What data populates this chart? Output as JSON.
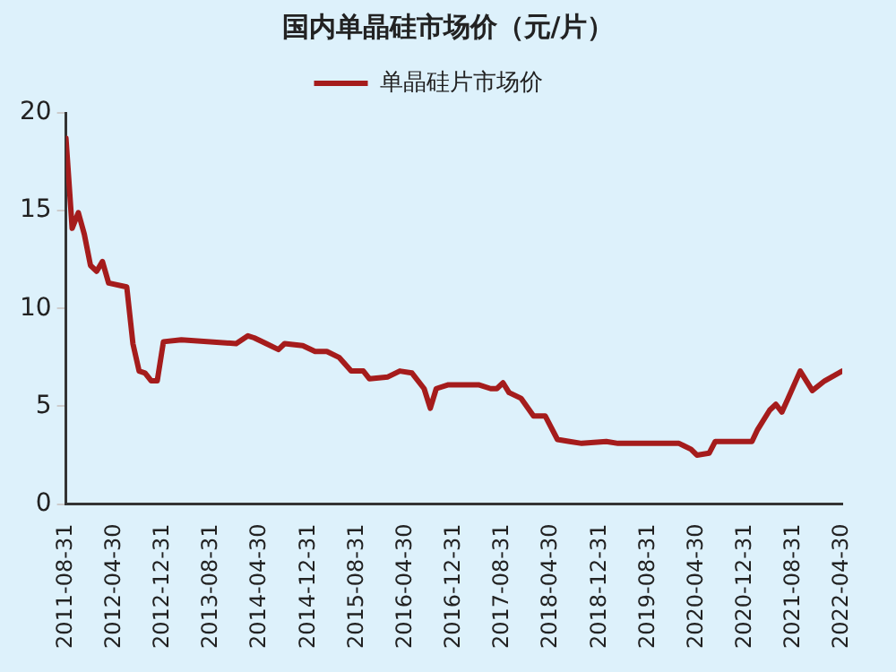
{
  "chart_data": {
    "type": "line",
    "title": "国内单晶硅市场价（元/片）",
    "legend": "top",
    "grid": false,
    "marker": "none",
    "line_style": "solid",
    "x": [
      "2011-08-31",
      "2011-10",
      "2011-11",
      "2011-12",
      "2012-01",
      "2012-02",
      "2012-03",
      "2012-04",
      "2012-07",
      "2012-08",
      "2012-09",
      "2012-10",
      "2012-11",
      "2012-12",
      "2013-01",
      "2013-04",
      "2014-01",
      "2014-03",
      "2014-04",
      "2014-06",
      "2014-08",
      "2014-09",
      "2014-12",
      "2015-02",
      "2015-04",
      "2015-06",
      "2015-08",
      "2015-10",
      "2015-11",
      "2016-02",
      "2016-04",
      "2016-06",
      "2016-08",
      "2016-09",
      "2016-10",
      "2016-12",
      "2017-05",
      "2017-07",
      "2017-08",
      "2017-09",
      "2017-10",
      "2017-12",
      "2018-02",
      "2018-04",
      "2018-06",
      "2018-08",
      "2018-10",
      "2019-02",
      "2019-04",
      "2020-02",
      "2020-04",
      "2020-05",
      "2020-07",
      "2020-08",
      "2021-02",
      "2021-03",
      "2021-05",
      "2021-06",
      "2021-07",
      "2021-08",
      "2021-10",
      "2021-12",
      "2022-02",
      "2022-04-30"
    ],
    "series": [
      {
        "name": "单晶硅片市场价",
        "color": "#a51c1c",
        "values": [
          18.7,
          14.1,
          14.9,
          13.8,
          12.2,
          11.9,
          12.4,
          11.3,
          11.1,
          8.2,
          6.8,
          6.7,
          6.3,
          6.3,
          8.3,
          8.4,
          8.2,
          8.6,
          8.5,
          8.2,
          7.9,
          8.2,
          8.1,
          7.8,
          7.8,
          7.5,
          6.8,
          6.8,
          6.4,
          6.5,
          6.8,
          6.7,
          5.9,
          4.9,
          5.9,
          6.1,
          6.1,
          5.9,
          5.9,
          6.2,
          5.7,
          5.4,
          4.5,
          4.5,
          3.3,
          3.2,
          3.1,
          3.2,
          3.1,
          3.1,
          2.8,
          2.5,
          2.6,
          3.2,
          3.2,
          3.8,
          4.8,
          5.1,
          4.7,
          5.4,
          6.8,
          5.8,
          6.3,
          6.8
        ]
      }
    ],
    "xlim": [
      "2011-08-31",
      "2022-04-30"
    ],
    "xticks": [
      "2011-08-31",
      "2012-04-30",
      "2012-12-31",
      "2013-08-31",
      "2014-04-30",
      "2014-12-31",
      "2015-08-31",
      "2016-04-30",
      "2016-12-31",
      "2017-08-31",
      "2018-04-30",
      "2018-12-31",
      "2019-08-31",
      "2020-04-30",
      "2020-12-31",
      "2021-08-31",
      "2022-04-30"
    ],
    "ylim": [
      0,
      20
    ],
    "yticks": [
      0,
      5,
      10,
      15,
      20
    ]
  }
}
